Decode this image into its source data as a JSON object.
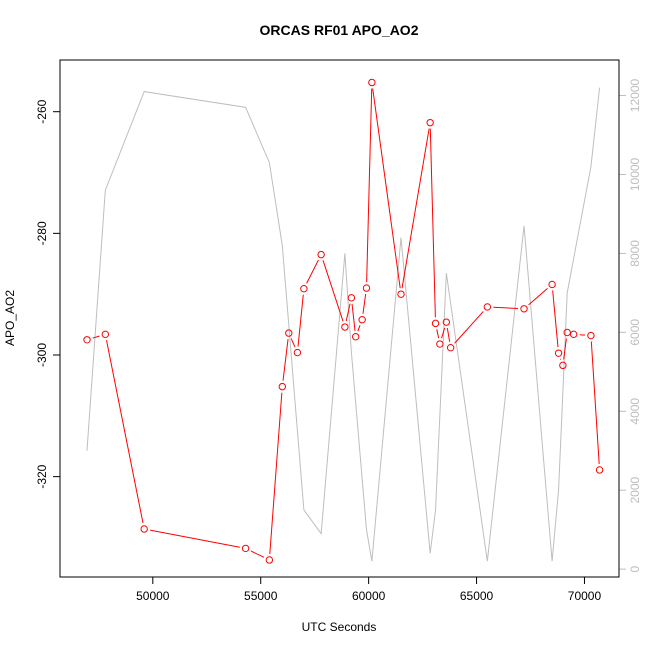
{
  "chart_data": {
    "type": "line",
    "title": "ORCAS RF01 APO_AO2",
    "xlabel": "UTC Seconds",
    "ylabel": "APO_AO2",
    "xlim": [
      45700,
      71600
    ],
    "ylim": [
      -336.5,
      -251.5
    ],
    "y2lim": [
      -200,
      12900
    ],
    "x_ticks": [
      50000,
      55000,
      60000,
      65000,
      70000
    ],
    "y_ticks": [
      -260,
      -280,
      -300,
      -320
    ],
    "y2_ticks": [
      0,
      2000,
      4000,
      6000,
      8000,
      10000,
      12000
    ],
    "grid": false,
    "colors": {
      "primary": "#ff0000",
      "secondary": "#bebebe"
    },
    "series": [
      {
        "axis": "left",
        "style": "line+circle",
        "x": [
          46950,
          47800,
          49600,
          54300,
          55400,
          56000,
          56300,
          56700,
          57000,
          57800,
          58900,
          59200,
          59400,
          59700,
          59900,
          60150,
          61500,
          62850,
          63100,
          63300,
          63600,
          63800,
          65500,
          67200,
          68500,
          68800,
          69000,
          69200,
          69500,
          70300,
          70700
        ],
        "values": [
          -297.5,
          -296.6,
          -328.6,
          -331.8,
          -333.7,
          -305.2,
          -296.4,
          -299.6,
          -289.1,
          -283.5,
          -295.4,
          -290.6,
          -297.0,
          -294.2,
          -289.0,
          -255.2,
          -290.0,
          -261.8,
          -294.8,
          -298.2,
          -294.6,
          -298.8,
          -292.1,
          -292.4,
          -288.4,
          -299.7,
          -301.7,
          -296.3,
          -296.6,
          -296.8,
          -318.9
        ]
      },
      {
        "axis": "right",
        "style": "line",
        "x": [
          46950,
          47800,
          49600,
          54300,
          55400,
          56000,
          56700,
          57000,
          57800,
          58900,
          59200,
          59900,
          60150,
          61500,
          62850,
          63100,
          63600,
          65500,
          67200,
          68500,
          68800,
          69200,
          70300,
          70700
        ],
        "values": [
          3000,
          9600,
          12100,
          11700,
          10300,
          8200,
          3500,
          1500,
          900,
          8000,
          5500,
          1000,
          200,
          8400,
          400,
          1500,
          7500,
          200,
          8700,
          200,
          2000,
          7000,
          10200,
          12200
        ]
      }
    ]
  }
}
